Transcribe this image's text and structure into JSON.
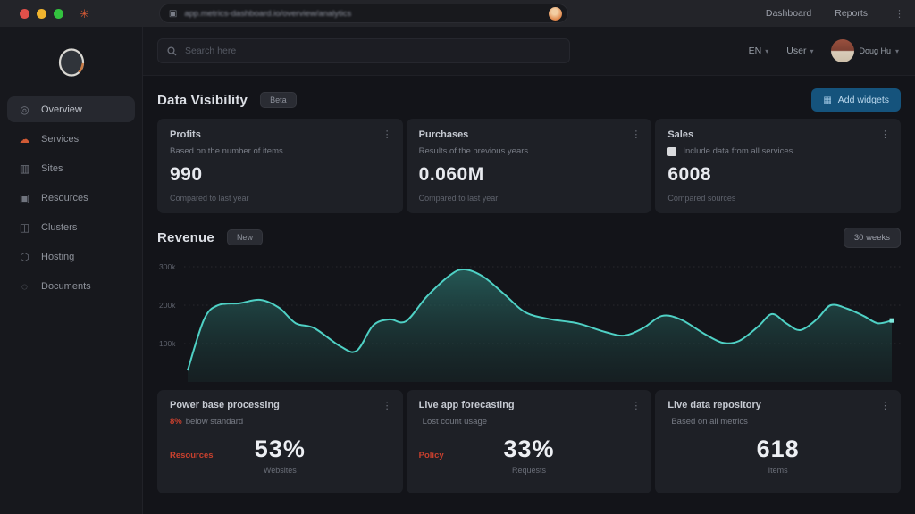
{
  "browser": {
    "url_text": "app.metrics-dashboard.io/overview/analytics",
    "links": [
      {
        "label": "Dashboard"
      },
      {
        "label": "Reports"
      }
    ]
  },
  "sidebar": {
    "items": [
      {
        "label": "Overview",
        "icon": "overview-icon",
        "active": true
      },
      {
        "label": "Services",
        "icon": "services-icon"
      },
      {
        "label": "Sites",
        "icon": "sites-icon"
      },
      {
        "label": "Resources",
        "icon": "resources-icon"
      },
      {
        "label": "Clusters",
        "icon": "clusters-icon"
      },
      {
        "label": "Hosting",
        "icon": "hosting-icon"
      },
      {
        "label": "Documents",
        "icon": "documents-icon"
      }
    ]
  },
  "topbar": {
    "search_placeholder": "Search here",
    "language": "EN",
    "user_menu": "User",
    "user_name": "Doug Hu"
  },
  "section1": {
    "title": "Data Visibility",
    "badge": "Beta",
    "action": "Add widgets"
  },
  "stat_cards": [
    {
      "title": "Profits",
      "subtitle": "Based on the number of items",
      "value": "990",
      "footer": "Compared to last year"
    },
    {
      "title": "Purchases",
      "subtitle": "Results of the previous years",
      "value": "0.060M",
      "footer": "Compared to last year"
    },
    {
      "title": "Sales",
      "subtitle": "Include data from all services",
      "value": "6008",
      "footer": "Compared sources"
    }
  ],
  "section2": {
    "title": "Revenue",
    "badge": "New",
    "range_button": "30 weeks"
  },
  "chart_data": {
    "type": "area",
    "title": "Revenue",
    "xlabel": "weeks",
    "ylabel": "revenue",
    "xlim": [
      0,
      30
    ],
    "ylim": [
      0,
      320
    ],
    "grid": "dotted",
    "line_color": "#4fd1c5",
    "fill_color": "#1f4f4c",
    "gridlines": [
      {
        "label": "300k",
        "value": 300
      },
      {
        "label": "200k",
        "value": 200
      },
      {
        "label": "100k",
        "value": 100
      }
    ],
    "x": [
      0,
      0.7,
      1.3,
      2.2,
      3.1,
      3.9,
      4.6,
      5.4,
      6.5,
      7.2,
      7.9,
      8.6,
      9.3,
      10.2,
      11.2,
      11.8,
      12.6,
      13.5,
      14.4,
      15.5,
      16.6,
      17.8,
      18.6,
      19.4,
      20.2,
      21,
      22,
      22.8,
      23.5,
      24.3,
      24.9,
      25.5,
      26.1,
      26.8,
      27.4,
      28.1,
      28.8,
      29.4,
      30
    ],
    "values": [
      30,
      163,
      200,
      205,
      214,
      193,
      153,
      140,
      93,
      81,
      147,
      163,
      158,
      223,
      279,
      293,
      274,
      228,
      181,
      163,
      153,
      130,
      121,
      140,
      172,
      163,
      126,
      102,
      107,
      144,
      177,
      153,
      135,
      163,
      200,
      191,
      172,
      153,
      160
    ]
  },
  "bottom_cards": [
    {
      "title": "Power base processing",
      "subtitle_accent": "8%",
      "subtitle": "below standard",
      "alert": "Resources",
      "value": "53%",
      "caption": "Websites"
    },
    {
      "title": "Live app forecasting",
      "subtitle_accent": "",
      "subtitle": "Lost count usage",
      "alert": "Policy",
      "value": "33%",
      "caption": "Requests"
    },
    {
      "title": "Live data repository",
      "subtitle_accent": "",
      "subtitle": "Based on all metrics",
      "alert": "",
      "value": "618",
      "caption": "Items"
    }
  ]
}
